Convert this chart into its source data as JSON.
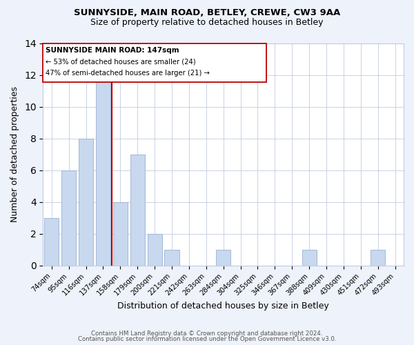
{
  "title1": "SUNNYSIDE, MAIN ROAD, BETLEY, CREWE, CW3 9AA",
  "title2": "Size of property relative to detached houses in Betley",
  "xlabel": "Distribution of detached houses by size in Betley",
  "ylabel": "Number of detached properties",
  "categories": [
    "74sqm",
    "95sqm",
    "116sqm",
    "137sqm",
    "158sqm",
    "179sqm",
    "200sqm",
    "221sqm",
    "242sqm",
    "263sqm",
    "284sqm",
    "304sqm",
    "325sqm",
    "346sqm",
    "367sqm",
    "388sqm",
    "409sqm",
    "430sqm",
    "451sqm",
    "472sqm",
    "493sqm"
  ],
  "values": [
    3,
    6,
    8,
    12,
    4,
    7,
    2,
    1,
    0,
    0,
    1,
    0,
    0,
    0,
    0,
    1,
    0,
    0,
    0,
    1,
    0
  ],
  "highlight_index": 3,
  "bar_color": "#c8d8ee",
  "highlight_line_color": "#bb0000",
  "ylim": [
    0,
    14
  ],
  "yticks": [
    0,
    2,
    4,
    6,
    8,
    10,
    12,
    14
  ],
  "annotation_title": "SUNNYSIDE MAIN ROAD: 147sqm",
  "annotation_line1": "← 53% of detached houses are smaller (24)",
  "annotation_line2": "47% of semi-detached houses are larger (21) →",
  "footer1": "Contains HM Land Registry data © Crown copyright and database right 2024.",
  "footer2": "Contains public sector information licensed under the Open Government Licence v3.0.",
  "background_color": "#eef2fa",
  "plot_bg_color": "#ffffff",
  "grid_color": "#c0cce0"
}
